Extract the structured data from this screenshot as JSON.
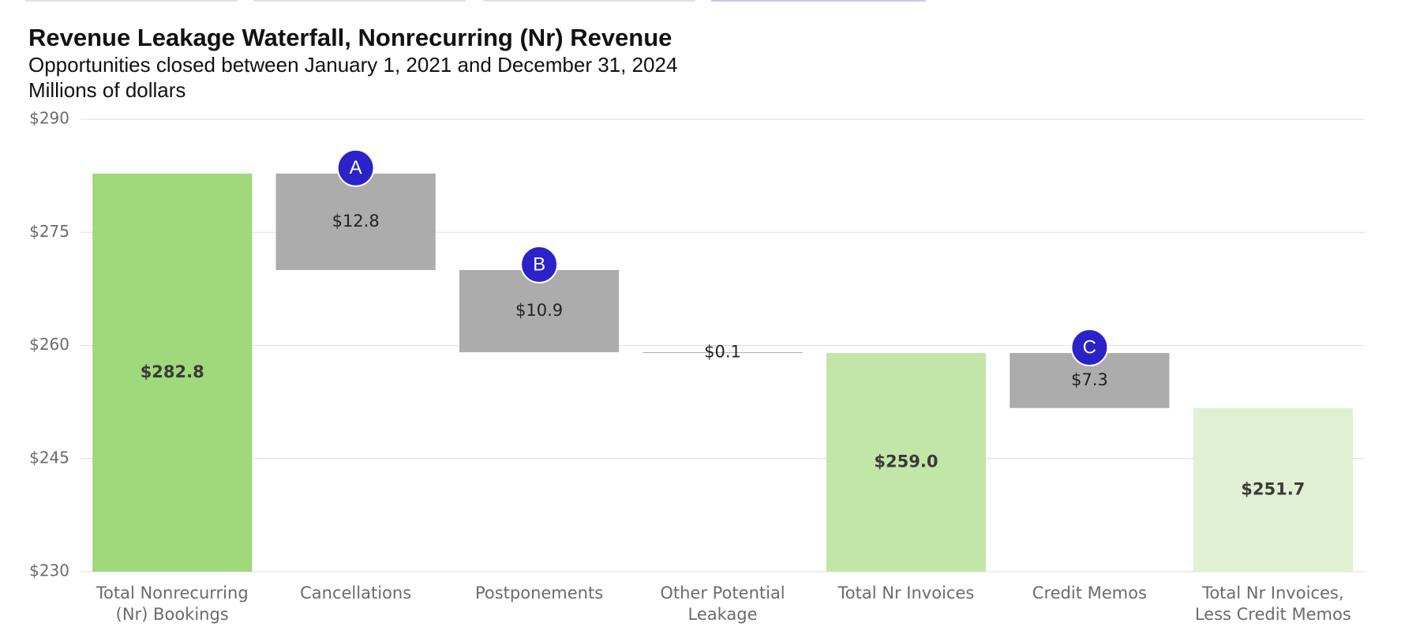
{
  "chart_data": {
    "type": "waterfall",
    "title": "Revenue Leakage Waterfall, Nonrecurring (Nr) Revenue",
    "subtitle": "Opportunities closed between January 1, 2021 and December 31, 2024",
    "y_axis_label": "Millions of dollars",
    "categories": [
      "Total Nonrecurring (Nr) Bookings",
      "Cancellations",
      "Postponements",
      "Other Potential Leakage",
      "Total Nr Invoices",
      "Credit Memos",
      "Total Nr Invoices, Less Credit Memos"
    ],
    "values": [
      282.8,
      12.8,
      10.9,
      0.1,
      259.0,
      7.3,
      251.7
    ],
    "value_labels": [
      "$282.8",
      "$12.8",
      "$10.9",
      "$0.1",
      "$259.0",
      "$7.3",
      "$251.7"
    ],
    "measures": [
      "total",
      "decrease",
      "decrease",
      "decrease",
      "total",
      "decrease",
      "total"
    ],
    "colors": [
      "#a0d87c",
      "#acacac",
      "#acacac",
      "#acacac",
      "#c2e6a8",
      "#acacac",
      "#dff1d2"
    ],
    "annotations": [
      {
        "label": "A",
        "index": 1
      },
      {
        "label": "B",
        "index": 2
      },
      {
        "label": "C",
        "index": 5
      }
    ],
    "annotation_color": "#2b22c8",
    "ylim": [
      230,
      290
    ],
    "yticks": [
      {
        "value": 230,
        "label": "$230"
      },
      {
        "value": 245,
        "label": "$245"
      },
      {
        "value": 260,
        "label": "$260"
      },
      {
        "value": 275,
        "label": "$275"
      },
      {
        "value": 290,
        "label": "$290"
      }
    ],
    "grid": true
  }
}
